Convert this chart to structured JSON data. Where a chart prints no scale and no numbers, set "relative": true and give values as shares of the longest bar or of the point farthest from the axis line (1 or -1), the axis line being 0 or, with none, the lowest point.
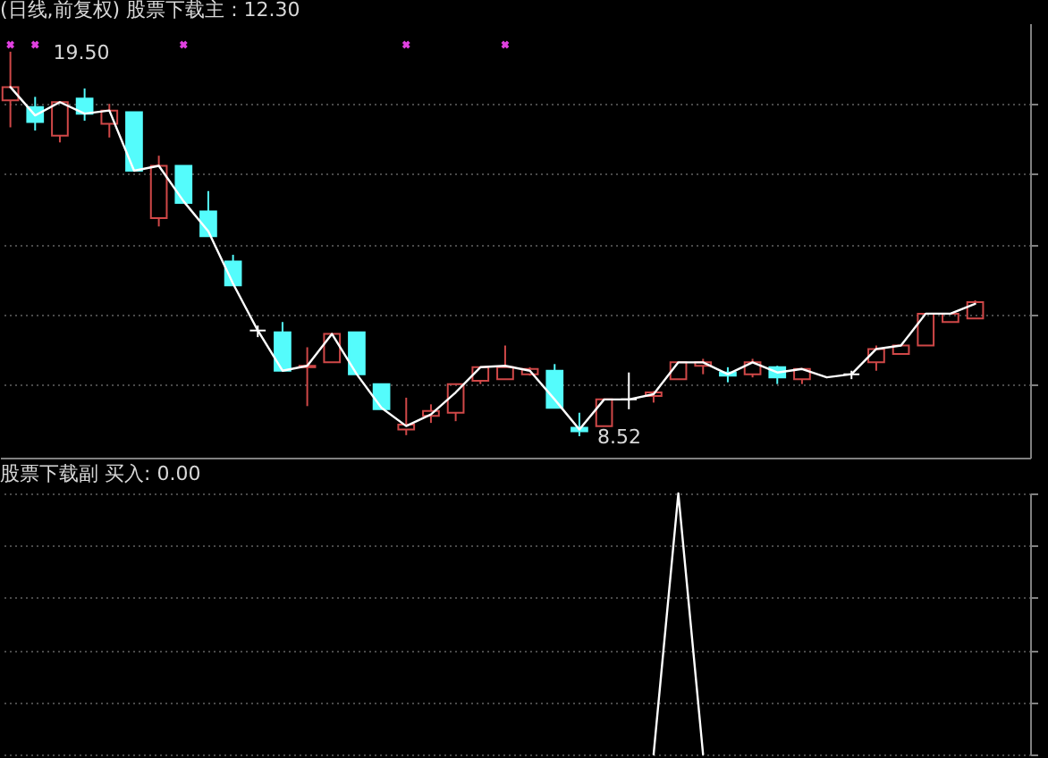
{
  "chart_data": [
    {
      "type": "candlestick",
      "title": "(日线,前复权) 股票下载主 : 12.30",
      "categories": [
        null,
        null,
        null,
        null,
        null,
        null,
        null,
        null,
        null,
        null,
        null,
        null,
        null,
        null,
        null,
        null,
        null,
        null,
        null,
        null,
        null,
        null,
        null,
        null,
        null,
        null,
        null,
        null,
        null,
        null,
        null,
        null,
        null,
        null,
        null,
        null,
        null,
        null,
        null,
        null
      ],
      "ohlc": [
        [
          18.11,
          19.5,
          17.34,
          18.49
        ],
        [
          17.92,
          18.21,
          17.25,
          17.49
        ],
        [
          17.1,
          18.06,
          16.91,
          18.06
        ],
        [
          18.16,
          18.45,
          17.53,
          17.73
        ],
        [
          17.44,
          18.01,
          17.05,
          17.82
        ],
        [
          17.77,
          17.77,
          16.1,
          16.1
        ],
        [
          14.75,
          16.53,
          14.51,
          16.24
        ],
        [
          16.24,
          16.24,
          15.18,
          15.18
        ],
        [
          14.94,
          15.52,
          14.23,
          14.23
        ],
        [
          13.51,
          13.7,
          12.83,
          12.83
        ],
        [
          11.54,
          11.68,
          11.35,
          11.54
        ],
        [
          11.49,
          11.78,
          10.39,
          10.39
        ],
        [
          10.49,
          11.06,
          9.38,
          10.53
        ],
        [
          10.63,
          11.44,
          10.63,
          11.44
        ],
        [
          11.49,
          11.49,
          10.29,
          10.29
        ],
        [
          10.01,
          10.01,
          9.29,
          9.29
        ],
        [
          8.71,
          9.62,
          8.55,
          8.85
        ],
        [
          9.1,
          9.43,
          8.9,
          9.24
        ],
        [
          9.19,
          10.01,
          8.95,
          10.01
        ],
        [
          10.1,
          10.49,
          10.01,
          10.49
        ],
        [
          10.15,
          11.11,
          10.15,
          10.49
        ],
        [
          10.29,
          10.49,
          10.25,
          10.44
        ],
        [
          10.39,
          10.58,
          9.33,
          9.33
        ],
        [
          8.76,
          9.19,
          8.52,
          8.66
        ],
        [
          8.81,
          9.57,
          8.81,
          9.57
        ],
        [
          9.57,
          10.34,
          9.29,
          9.57
        ],
        [
          9.67,
          9.81,
          9.48,
          9.77
        ],
        [
          10.15,
          10.63,
          10.15,
          10.63
        ],
        [
          10.53,
          10.73,
          10.29,
          10.63
        ],
        [
          10.34,
          10.49,
          10.06,
          10.25
        ],
        [
          10.29,
          10.73,
          10.2,
          10.63
        ],
        [
          10.49,
          10.53,
          10.01,
          10.2
        ],
        [
          10.15,
          10.44,
          10.01,
          10.44
        ],
        null,
        [
          10.29,
          10.39,
          10.15,
          10.29
        ],
        [
          10.63,
          11.11,
          10.39,
          11.01
        ],
        [
          10.87,
          11.11,
          10.87,
          11.11
        ],
        [
          11.11,
          12.02,
          11.11,
          12.02
        ],
        [
          11.78,
          12.02,
          11.78,
          12.02
        ],
        [
          11.88,
          12.4,
          11.88,
          12.35
        ]
      ],
      "colors": [
        "#d04848",
        "#54fcfc",
        "#d04848",
        "#54fcfc",
        "#d04848",
        "#54fcfc",
        "#d04848",
        "#54fcfc",
        "#54fcfc",
        "#54fcfc",
        "#ffffff",
        "#54fcfc",
        "#d04848",
        "#d04848",
        "#54fcfc",
        "#54fcfc",
        "#d04848",
        "#d04848",
        "#d04848",
        "#d04848",
        "#d04848",
        "#d04848",
        "#54fcfc",
        "#54fcfc",
        "#d04848",
        "#ffffff",
        "#d04848",
        "#d04848",
        "#d04848",
        "#54fcfc",
        "#d04848",
        "#54fcfc",
        "#d04848",
        null,
        "#ffffff",
        "#d04848",
        "#d04848",
        "#d04848",
        "#d04848",
        "#d04848"
      ],
      "series": [
        {
          "type": "line",
          "color": "#ffffff",
          "values": [
            18.49,
            17.68,
            18.06,
            17.73,
            17.82,
            16.1,
            16.24,
            15.23,
            14.37,
            12.88,
            11.54,
            10.39,
            10.53,
            11.44,
            10.29,
            9.33,
            8.81,
            9.14,
            9.77,
            10.49,
            10.53,
            10.39,
            9.57,
            8.71,
            9.57,
            9.57,
            9.72,
            10.63,
            10.63,
            10.29,
            10.63,
            10.34,
            10.44,
            10.2,
            10.29,
            11.01,
            11.11,
            12.02,
            12.02,
            12.3
          ]
        },
        {
          "type": "scatter",
          "color": "#e040e0",
          "marker": "cross",
          "values": [
            19.7,
            19.7,
            null,
            null,
            null,
            null,
            null,
            19.7,
            null,
            null,
            null,
            null,
            null,
            null,
            null,
            null,
            19.7,
            null,
            null,
            null,
            19.7,
            null,
            null,
            null,
            null,
            null,
            null,
            null,
            null,
            null,
            null,
            null,
            null,
            null,
            null,
            null,
            null,
            null,
            null,
            null
          ]
        }
      ],
      "annotations": [
        "19.50",
        "8.52"
      ],
      "yticks": [
        {
          "value": 10,
          "label": null
        },
        {
          "value": 12,
          "label": null
        },
        {
          "value": 14,
          "label": null
        },
        {
          "value": 16,
          "label": null
        },
        {
          "value": 18,
          "label": null
        }
      ],
      "grid": "y",
      "tick_labels": false
    },
    {
      "type": "line",
      "title": "股票下载副 买入: 0.00",
      "categories": [
        null,
        null,
        null,
        null,
        null,
        null,
        null,
        null,
        null,
        null,
        null,
        null,
        null,
        null,
        null,
        null,
        null,
        null,
        null,
        null,
        null,
        null,
        null,
        null,
        null,
        null,
        null,
        null,
        null,
        null,
        null,
        null,
        null,
        null,
        null,
        null,
        null,
        null,
        null,
        null
      ],
      "relative": true,
      "series": [
        {
          "color": "#ffffff",
          "values": [
            null,
            null,
            null,
            null,
            null,
            null,
            null,
            null,
            null,
            null,
            null,
            null,
            null,
            null,
            null,
            null,
            null,
            null,
            null,
            null,
            null,
            null,
            null,
            null,
            null,
            null,
            0,
            1,
            0,
            null,
            null,
            null,
            null,
            null,
            null,
            null,
            null,
            null,
            null,
            null
          ]
        }
      ],
      "grid": "y",
      "tick_labels": false
    }
  ]
}
